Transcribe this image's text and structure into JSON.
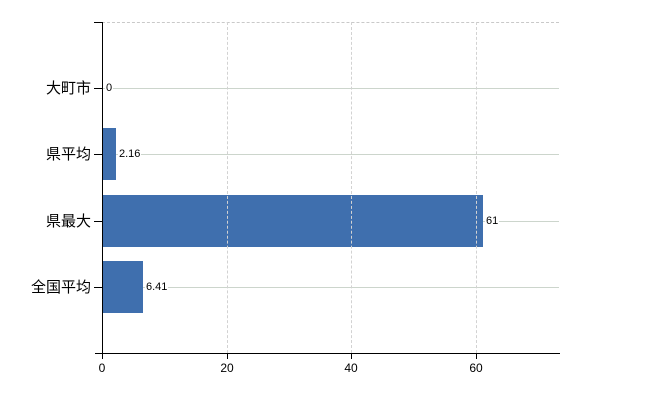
{
  "chart_data": {
    "type": "bar",
    "orientation": "horizontal",
    "title": "",
    "categories": [
      "大町市",
      "県平均",
      "県最大",
      "全国平均"
    ],
    "values": [
      0,
      2.16,
      61,
      6.41
    ],
    "value_labels": [
      "0",
      "2.16",
      "61",
      "6.41"
    ],
    "x_ticks": [
      0,
      20,
      40,
      60
    ],
    "x_tick_labels": [
      "0",
      "20",
      "40",
      "60"
    ],
    "xlim": [
      0,
      73.3
    ],
    "legend": "none",
    "grid": {
      "vertical_gridlines": "dashed, at x ticks 20/40/60",
      "row_center_lines": "solid, one per category",
      "top_border": "dashed"
    },
    "colors": {
      "bar": "#3f6fae",
      "axis": "#000000",
      "dashed_grid": "#d2d2d2",
      "row_line": "#ccd5cc",
      "text": "#000000",
      "background": "#ffffff"
    }
  }
}
